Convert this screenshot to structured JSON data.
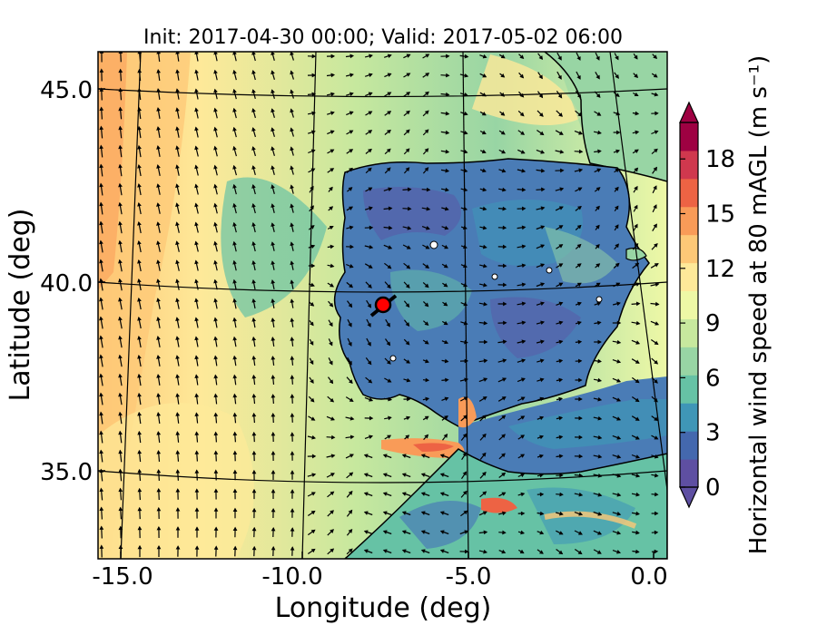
{
  "title": "Init: 2017-04-30 00:00; Valid: 2017-05-02 06:00",
  "xlabel": "Longitude (deg)",
  "ylabel": "Latitude (deg)",
  "x_ticks": [
    "-15.0",
    "-10.0",
    "-5.0",
    "0.0"
  ],
  "y_ticks": [
    "45.0",
    "40.0",
    "35.0"
  ],
  "colorbar": {
    "label": "Horizontal wind speed at 80 mAGL (m s⁻¹)",
    "ticks": [
      "0",
      "3",
      "6",
      "9",
      "12",
      "15",
      "18"
    ],
    "min": 0,
    "max": 20,
    "extend": "both",
    "colormap": [
      "#5e4fa2",
      "#4468ae",
      "#3f96b7",
      "#66c2a5",
      "#98d5a4",
      "#c7e89e",
      "#eef8a6",
      "#fee999",
      "#fdc877",
      "#f99b58",
      "#ed6344",
      "#d0384e",
      "#9e0142"
    ]
  },
  "map": {
    "lon_range": [
      -16,
      0
    ],
    "lat_range": [
      32.5,
      46
    ],
    "gridlines_lon": [
      -15,
      -10,
      -5,
      0
    ],
    "gridlines_lat": [
      45,
      40,
      35
    ],
    "ocean_color": "#e6f59a",
    "land_color": "#4a7cb6",
    "wind_arrows": "black quiver field",
    "marker": {
      "color": "#ff0000",
      "lon": -7.8,
      "lat": 39.3
    }
  }
}
